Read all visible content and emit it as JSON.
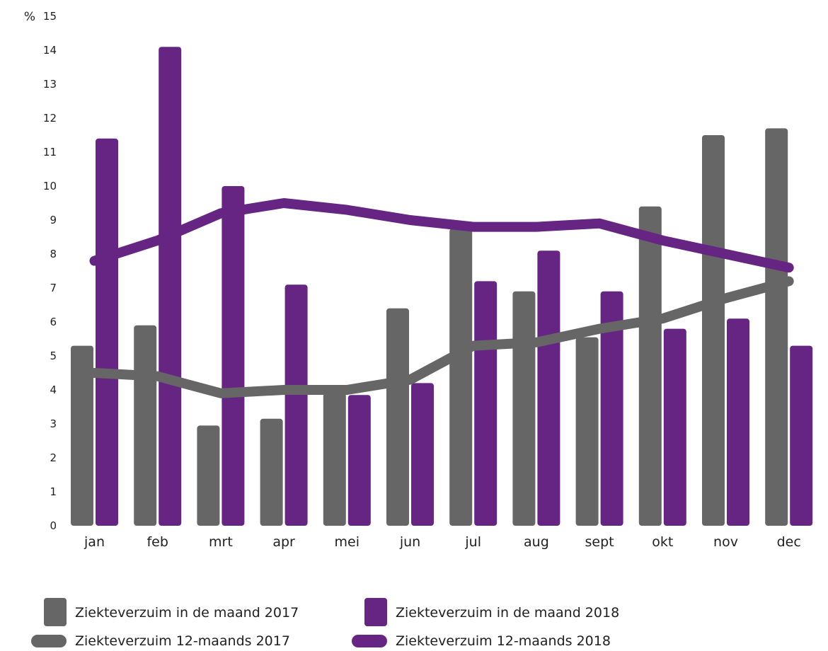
{
  "chart_data": {
    "type": "bar",
    "unit_label": "%",
    "categories": [
      "jan",
      "feb",
      "mrt",
      "apr",
      "mei",
      "jun",
      "jul",
      "aug",
      "sept",
      "okt",
      "nov",
      "dec"
    ],
    "ylim": [
      0,
      15
    ],
    "yticks": [
      "0",
      "1",
      "2",
      "3",
      "4",
      "5",
      "6",
      "7",
      "8",
      "9",
      "10",
      "11",
      "12",
      "13",
      "14",
      "15"
    ],
    "bar_series": [
      {
        "name": "Ziekteverzuim in de maand 2017",
        "color": "#666666",
        "values": [
          5.3,
          5.9,
          2.95,
          3.15,
          3.9,
          6.4,
          8.75,
          6.9,
          5.55,
          9.4,
          11.5,
          11.7
        ]
      },
      {
        "name": "Ziekteverzuim in de maand 2018",
        "color": "#662483",
        "values": [
          11.4,
          14.1,
          10.0,
          7.1,
          3.85,
          4.2,
          7.2,
          8.1,
          6.9,
          5.8,
          6.1,
          5.3
        ]
      }
    ],
    "line_series": [
      {
        "name": "Ziekteverzuim 12-maands 2017",
        "color": "#666666",
        "values": [
          4.5,
          4.4,
          3.9,
          4.0,
          4.0,
          4.3,
          5.3,
          5.4,
          5.8,
          6.1,
          6.7,
          7.2
        ]
      },
      {
        "name": "Ziekteverzuim 12-maands 2018",
        "color": "#662483",
        "values": [
          7.8,
          8.4,
          9.2,
          9.5,
          9.3,
          9.0,
          8.8,
          8.8,
          8.9,
          8.4,
          8.0,
          7.6
        ]
      }
    ],
    "grid": false,
    "legend": "bottom-left"
  }
}
